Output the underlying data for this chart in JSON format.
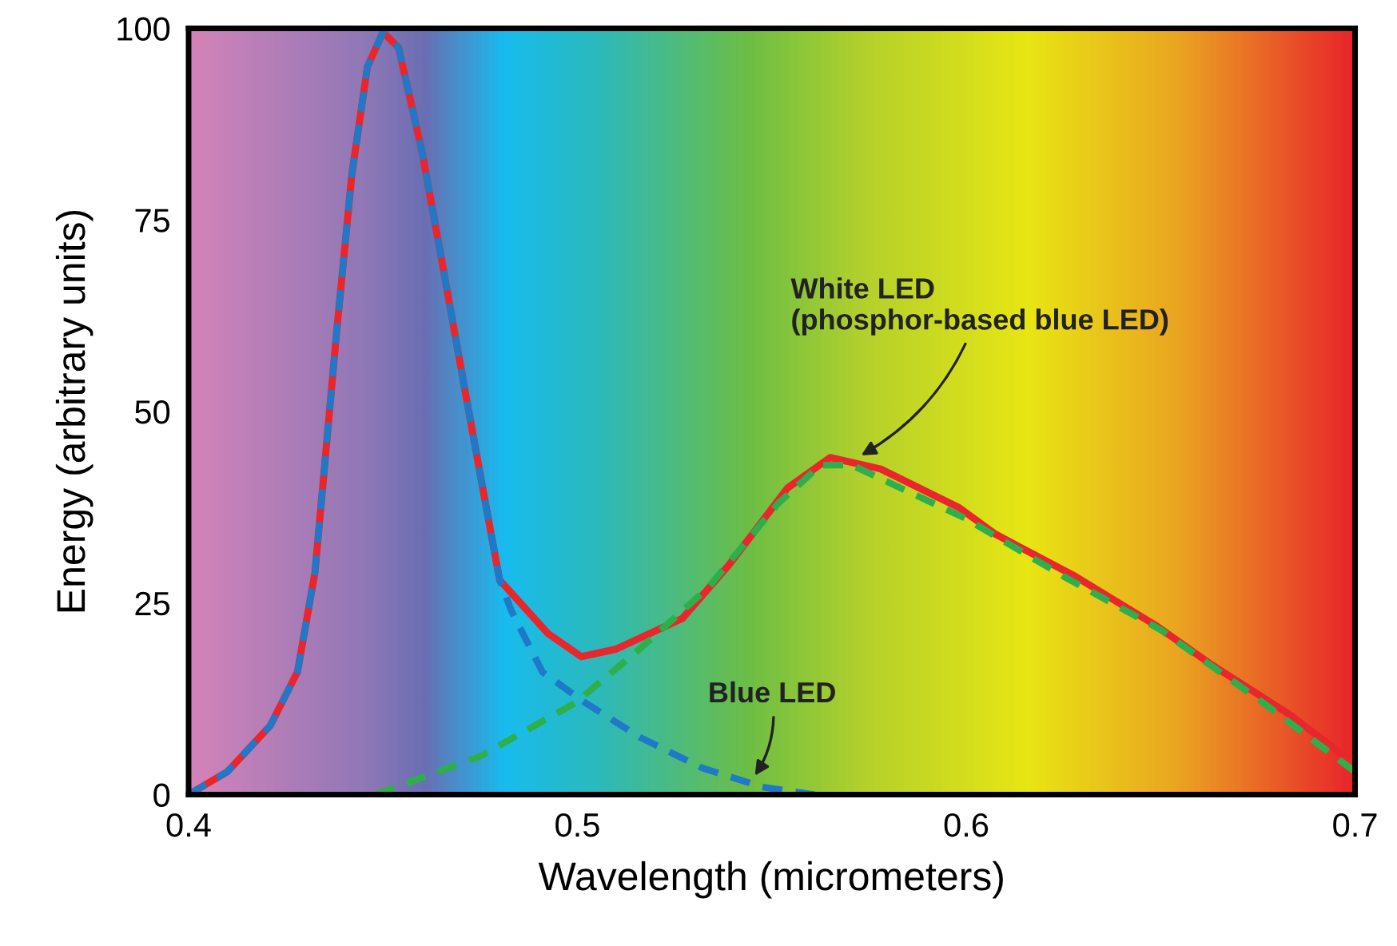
{
  "chart_data": {
    "type": "line",
    "xlabel": "Wavelength (micrometers)",
    "ylabel": "Energy (arbitrary units)",
    "xlim": [
      0.4,
      0.7
    ],
    "ylim": [
      0,
      100
    ],
    "xticks": [
      0.4,
      0.5,
      0.6,
      0.7
    ],
    "yticks": [
      0,
      25,
      50,
      75,
      100
    ],
    "grid": false,
    "legend": false,
    "series": [
      {
        "color": "#e8262b",
        "line_style": "solid",
        "x": [
          0.4,
          0.41,
          0.421,
          0.428,
          0.4325,
          0.435,
          0.438,
          0.442,
          0.446,
          0.45,
          0.454,
          0.46,
          0.465,
          0.471,
          0.476,
          0.48,
          0.4925,
          0.501,
          0.51,
          0.527,
          0.539,
          0.554,
          0.565,
          0.578,
          0.598,
          0.6075,
          0.628,
          0.649,
          0.663,
          0.683,
          0.7
        ],
        "values": [
          0,
          3,
          9,
          16,
          29,
          43,
          60,
          81,
          95,
          99.5,
          97.5,
          84,
          70,
          53,
          39,
          28,
          21,
          18,
          19,
          23,
          30,
          40,
          44,
          42.5,
          37.5,
          34,
          28.5,
          22,
          17,
          10.5,
          4
        ]
      },
      {
        "color": "#1f78c8",
        "line_style": "dashed",
        "x": [
          0.4,
          0.41,
          0.421,
          0.428,
          0.4325,
          0.435,
          0.438,
          0.442,
          0.446,
          0.45,
          0.454,
          0.46,
          0.465,
          0.471,
          0.476,
          0.48,
          0.483,
          0.491,
          0.502,
          0.516,
          0.532,
          0.5475,
          0.561
        ],
        "values": [
          0,
          3,
          9,
          16,
          29,
          43,
          60,
          81,
          95,
          99.5,
          97.5,
          84,
          70,
          53,
          39,
          28,
          24,
          16,
          12,
          7.5,
          3.5,
          1,
          0
        ]
      },
      {
        "color": "#2db04b",
        "line_style": "dashed",
        "x": [
          0.448,
          0.475,
          0.4995,
          0.516,
          0.5336,
          0.5516,
          0.5625,
          0.5706,
          0.6,
          0.625,
          0.65,
          0.675,
          0.7
        ],
        "values": [
          0,
          5,
          12,
          19,
          27,
          38,
          43,
          43,
          36,
          28.5,
          21.5,
          12.5,
          3
        ]
      }
    ],
    "annotations": [
      {
        "text": "White LED\n(phosphor-based blue LED)",
        "x": 0.572,
        "y": 44
      },
      {
        "text": "Blue LED",
        "x": 0.545,
        "y": 2
      }
    ]
  }
}
